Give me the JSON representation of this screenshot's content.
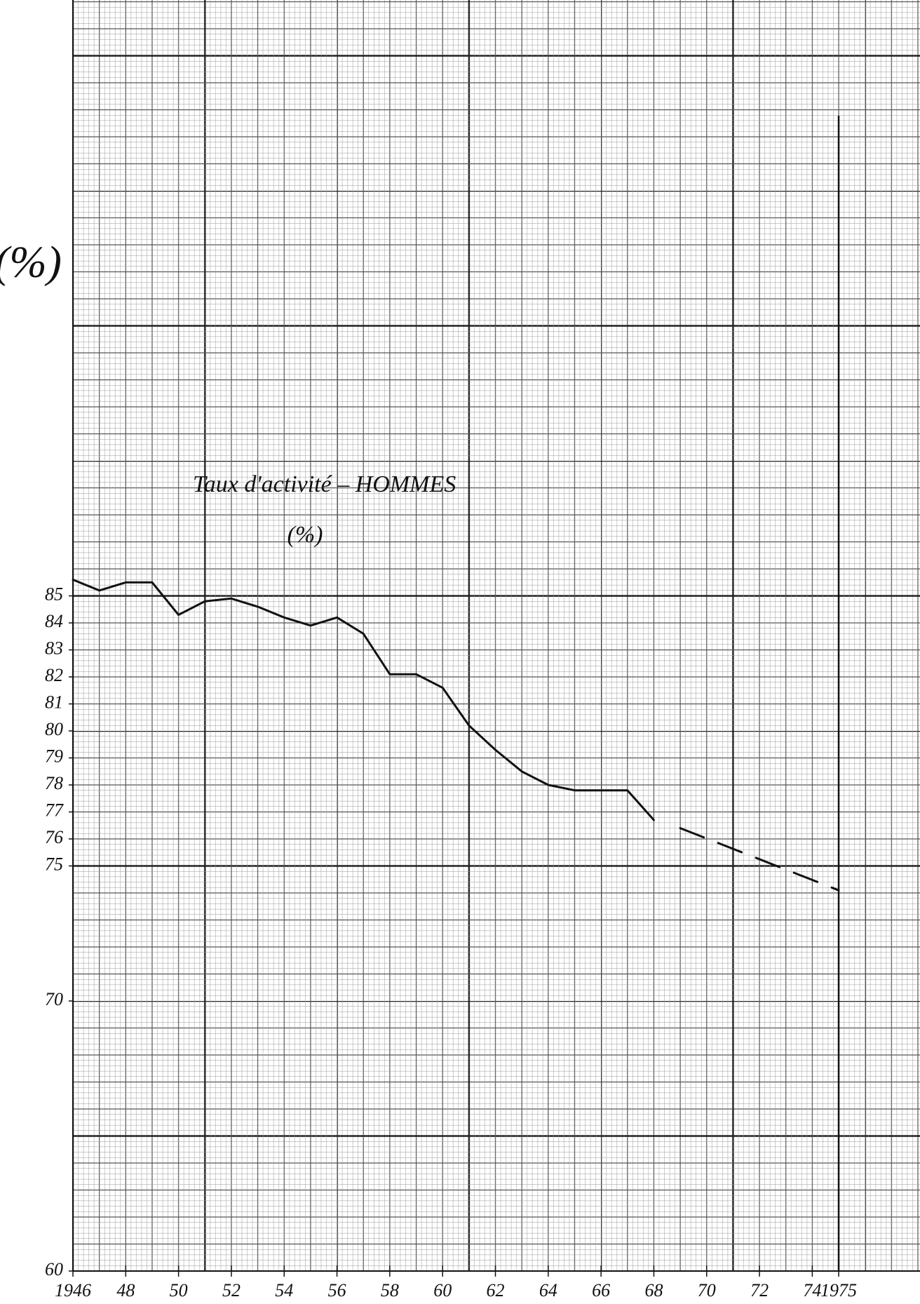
{
  "chart_data": {
    "type": "line",
    "title": "Taux d'activité – HOMMES",
    "subtitle": "(%)",
    "ylabel": "(%)",
    "xlim": [
      1946,
      1978
    ],
    "ylim": [
      60,
      107
    ],
    "xticks": [
      1946,
      {
        "value": 1948,
        "label": "48"
      },
      {
        "value": 1950,
        "label": "50"
      },
      {
        "value": 1952,
        "label": "52"
      },
      {
        "value": 1954,
        "label": "54"
      },
      {
        "value": 1956,
        "label": "56"
      },
      {
        "value": 1958,
        "label": "58"
      },
      {
        "value": 1960,
        "label": "60"
      },
      {
        "value": 1962,
        "label": "62"
      },
      {
        "value": 1964,
        "label": "64"
      },
      {
        "value": 1966,
        "label": "66"
      },
      {
        "value": 1968,
        "label": "68"
      },
      {
        "value": 1970,
        "label": "70"
      },
      {
        "value": 1972,
        "label": "72"
      },
      {
        "value": 1974,
        "label": "74"
      },
      1975
    ],
    "yticks": [
      60,
      70,
      75,
      76,
      77,
      78,
      79,
      80,
      81,
      82,
      83,
      84,
      85
    ],
    "vline": 1975,
    "series": [
      {
        "color": "#111111",
        "dashed": false,
        "x": [
          1946,
          1947,
          1948,
          1949,
          1950,
          1951,
          1952,
          1953,
          1954,
          1955,
          1956,
          1957,
          1958,
          1959,
          1960,
          1961,
          1962,
          1963,
          1964,
          1965,
          1966,
          1967,
          1968
        ],
        "values": [
          85.6,
          85.2,
          85.5,
          85.5,
          84.3,
          84.8,
          84.9,
          84.6,
          84.2,
          83.9,
          84.2,
          83.6,
          82.1,
          82.1,
          81.6,
          80.2,
          79.3,
          78.5,
          78.0,
          77.8,
          77.8,
          77.8,
          76.7
        ]
      },
      {
        "color": "#111111",
        "dashed": true,
        "x": [
          1969,
          1975
        ],
        "values": [
          76.4,
          74.1
        ]
      }
    ]
  }
}
